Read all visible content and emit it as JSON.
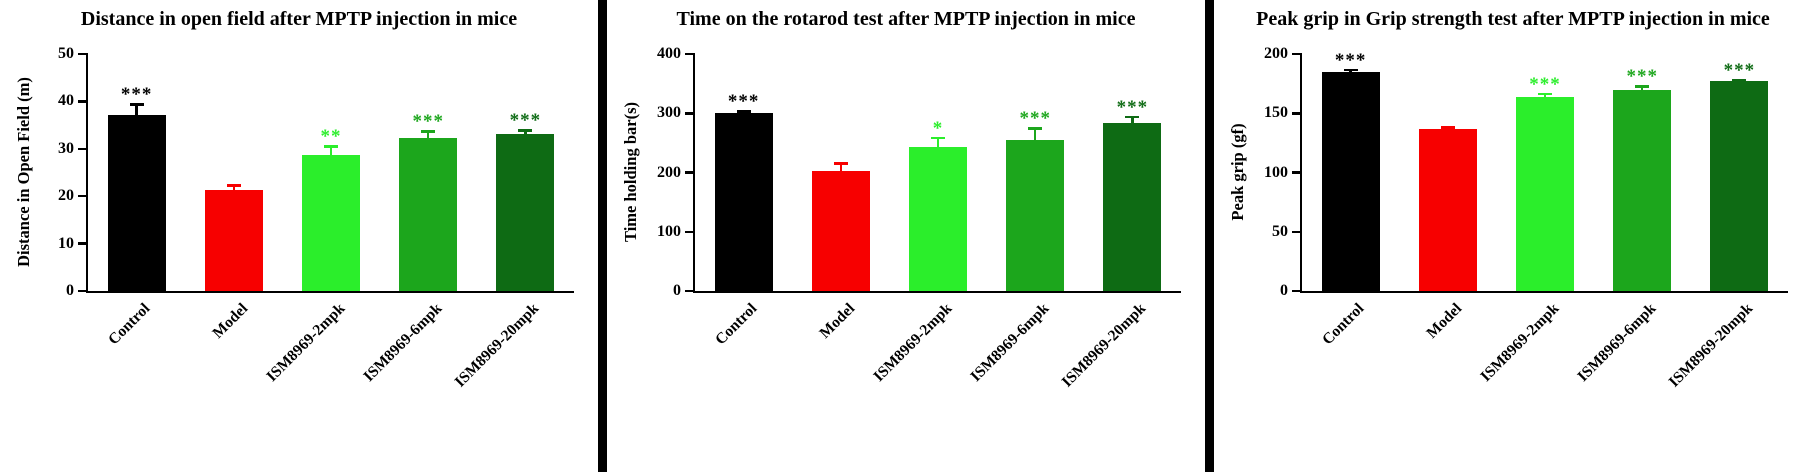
{
  "page": {
    "background_color": "#ffffff",
    "divider_color": "#000000",
    "axis_color": "#000000"
  },
  "chart_data": [
    {
      "type": "bar",
      "title": "Distance in open field after MPTP injection in mice",
      "xlabel": "",
      "ylabel": "Distance in Open Field (m)",
      "ylim": [
        0,
        50
      ],
      "yticks": [
        0,
        10,
        20,
        30,
        40,
        50
      ],
      "grid": false,
      "legend": false,
      "categories": [
        "Control",
        "Model",
        "ISM8969-2mpk",
        "ISM8969-6mpk",
        "ISM8969-20mpk"
      ],
      "values": [
        37.2,
        21.3,
        28.8,
        32.3,
        33.2
      ],
      "errors": [
        2.4,
        1.2,
        1.9,
        1.6,
        0.9
      ],
      "bar_colors": [
        "#000000",
        "#f70000",
        "#2bee2b",
        "#1ca61c",
        "#0e6b14"
      ],
      "significance": [
        "***",
        "",
        "**",
        "***",
        "***"
      ],
      "significance_colors": [
        "#000000",
        "",
        "#2bee2b",
        "#1ca61c",
        "#0e6b14"
      ]
    },
    {
      "type": "bar",
      "title": "Time on the rotarod test after MPTP injection in mice",
      "xlabel": "",
      "ylabel": "Time holding bar(s)",
      "ylim": [
        0,
        400
      ],
      "yticks": [
        0,
        100,
        200,
        300,
        400
      ],
      "grid": false,
      "legend": false,
      "categories": [
        "Control",
        "Model",
        "ISM8969-2mpk",
        "ISM8969-6mpk",
        "ISM8969-20mpk"
      ],
      "values": [
        300,
        202,
        243,
        255,
        283
      ],
      "errors": [
        5,
        15,
        17,
        21,
        13
      ],
      "bar_colors": [
        "#000000",
        "#f70000",
        "#2bee2b",
        "#1ca61c",
        "#0e6b14"
      ],
      "significance": [
        "***",
        "",
        "*",
        "***",
        "***"
      ],
      "significance_colors": [
        "#000000",
        "",
        "#2bee2b",
        "#1ca61c",
        "#0e6b14"
      ]
    },
    {
      "type": "bar",
      "title": "Peak grip in Grip strength test after MPTP injection in mice",
      "xlabel": "",
      "ylabel": "Peak grip (gf)",
      "ylim": [
        0,
        200
      ],
      "yticks": [
        0,
        50,
        100,
        150,
        200
      ],
      "grid": false,
      "legend": false,
      "categories": [
        "Control",
        "Model",
        "ISM8969-2mpk",
        "ISM8969-6mpk",
        "ISM8969-20mpk"
      ],
      "values": [
        185,
        137,
        164,
        170,
        177
      ],
      "errors": [
        2.5,
        2,
        3.5,
        3.5,
        1.5
      ],
      "bar_colors": [
        "#000000",
        "#f70000",
        "#2bee2b",
        "#1ca61c",
        "#0e6b14"
      ],
      "significance": [
        "***",
        "",
        "***",
        "***",
        "***"
      ],
      "significance_colors": [
        "#000000",
        "",
        "#2bee2b",
        "#1ca61c",
        "#0e6b14"
      ]
    }
  ]
}
